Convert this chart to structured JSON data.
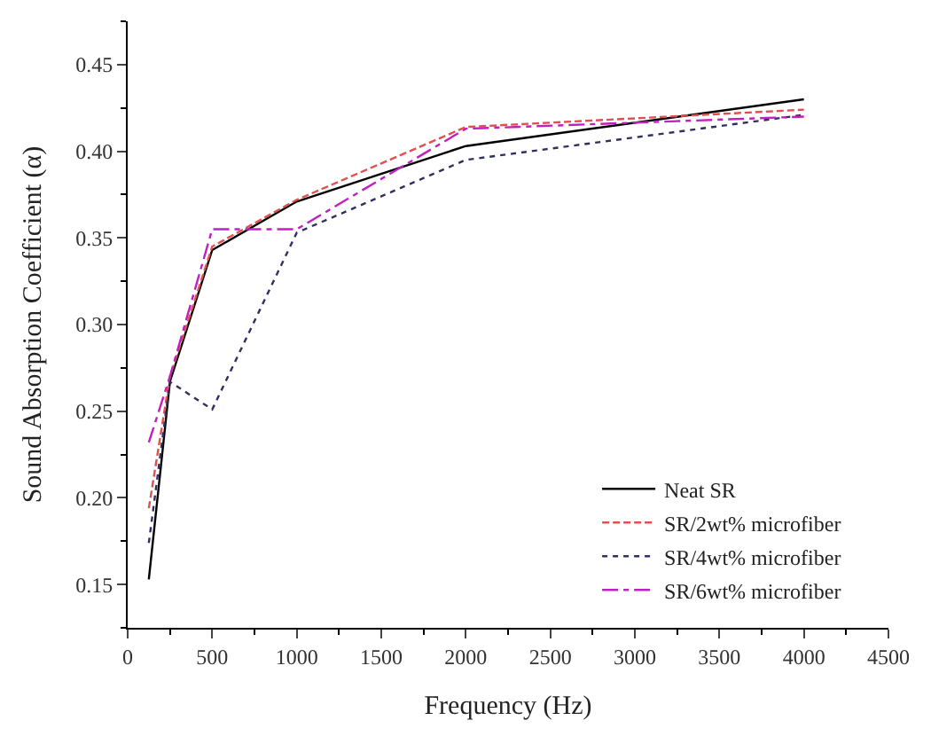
{
  "chart_data": {
    "type": "line",
    "xlabel": "Frequency (Hz)",
    "ylabel": "Sound Absorption Coefficient (α)",
    "x": [
      125,
      250,
      500,
      1000,
      2000,
      4000
    ],
    "series": [
      {
        "name": "Neat SR",
        "color": "#000000",
        "line_style": "solid",
        "values": [
          0.153,
          0.267,
          0.343,
          0.371,
          0.403,
          0.43
        ]
      },
      {
        "name": "SR/2wt% microfiber",
        "color": "#e05050",
        "line_style": "dashed",
        "values": [
          0.194,
          0.27,
          0.345,
          0.372,
          0.414,
          0.424
        ]
      },
      {
        "name": "SR/4wt% microfiber",
        "color": "#303060",
        "line_style": "dotted",
        "values": [
          0.174,
          0.267,
          0.251,
          0.353,
          0.395,
          0.421
        ]
      },
      {
        "name": "SR/6wt% microfiber",
        "color": "#c020c0",
        "line_style": "dashdot",
        "values": [
          0.232,
          0.27,
          0.355,
          0.355,
          0.413,
          0.42
        ]
      }
    ],
    "xlim": [
      0,
      4500
    ],
    "xticks": [
      0,
      500,
      1000,
      1500,
      2000,
      2500,
      3000,
      3500,
      4000,
      4500
    ],
    "ylim": [
      0.125,
      0.475
    ],
    "yticks": [
      {
        "value": 0.15,
        "label": "0.15"
      },
      {
        "value": 0.2,
        "label": "0.20"
      },
      {
        "value": 0.25,
        "label": "0.25"
      },
      {
        "value": 0.3,
        "label": "0.30"
      },
      {
        "value": 0.35,
        "label": "0.35"
      },
      {
        "value": 0.4,
        "label": "0.40"
      },
      {
        "value": 0.45,
        "label": "0.45"
      }
    ],
    "legend": "bottom right",
    "marker": "none"
  }
}
